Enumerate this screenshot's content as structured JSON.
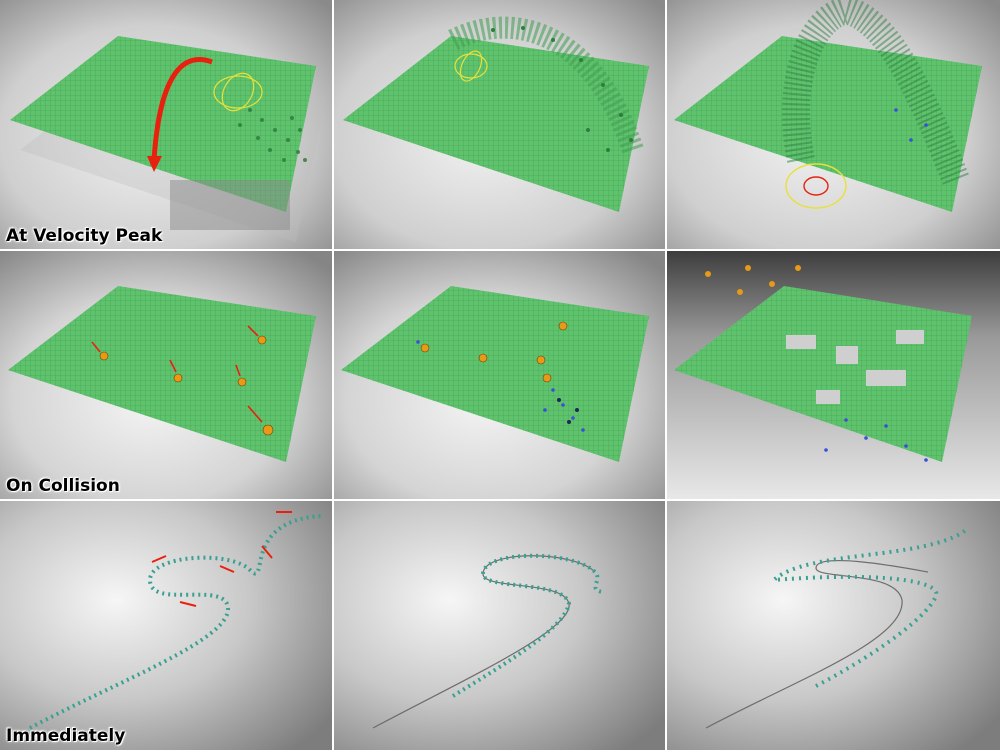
{
  "rows": [
    {
      "label": "At Velocity Peak"
    },
    {
      "label": "On Collision"
    },
    {
      "label": "Immediately"
    }
  ],
  "colors": {
    "plane_green": "#5cbf6b",
    "plane_grid": "#3f9a4f",
    "background_light": "#e4e4e4",
    "background_dark": "#8f8f8f",
    "arrow_red": "#e8210f",
    "gizmo_yellow": "#e8e03a",
    "sphere_orange": "#e89a16",
    "particle_blue": "#3a4fd8",
    "chain_teal": "#3aa090"
  }
}
